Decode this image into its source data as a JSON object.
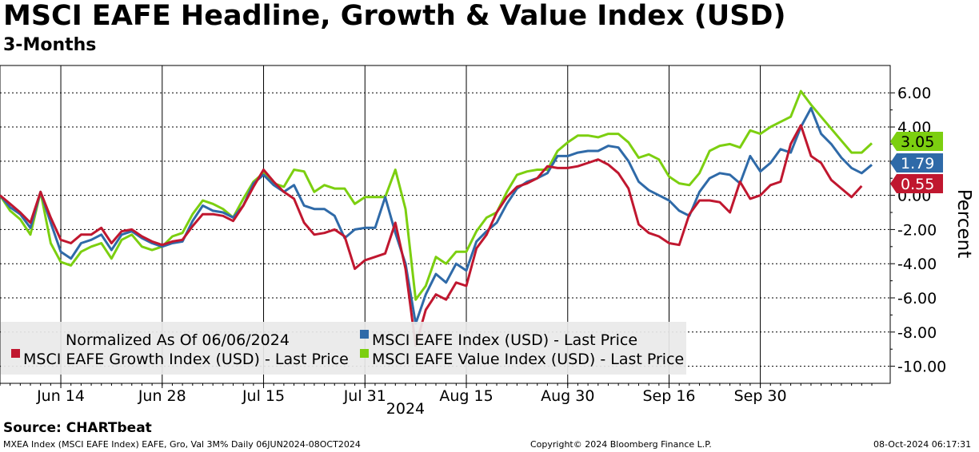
{
  "title": "MSCI EAFE Headline, Growth & Value Index (USD)",
  "subtitle": "3-Months",
  "chart_data": {
    "type": "line",
    "ylabel": "Percent",
    "xlabel": "2024",
    "ylim": [
      -11,
      7.6
    ],
    "yticks": [
      6,
      4,
      2,
      0,
      -2,
      -4,
      -6,
      -8,
      -10
    ],
    "ytick_labels": [
      "6.00",
      "4.00",
      "2.00",
      "0.00",
      "-2.00",
      "-4.00",
      "-6.00",
      "-8.00",
      "-10.00"
    ],
    "xticks": [
      {
        "label": "Jun 14",
        "index": 6
      },
      {
        "label": "Jun 28",
        "index": 16
      },
      {
        "label": "Jul 15",
        "index": 26
      },
      {
        "label": "Jul 31",
        "index": 36
      },
      {
        "label": "Aug 15",
        "index": 46
      },
      {
        "label": "Aug 30",
        "index": 56
      },
      {
        "label": "Sep 16",
        "index": 66
      },
      {
        "label": "Sep 30",
        "index": 75
      }
    ],
    "legend": {
      "note": "Normalized As Of 06/06/2024",
      "placement": "bottom-left"
    },
    "series": [
      {
        "name": "MSCI EAFE Index (USD) - Last Price",
        "color": "#2f6aa8",
        "last_value_label": "1.79",
        "values": [
          0.0,
          -0.7,
          -1.1,
          -1.9,
          0.2,
          -1.6,
          -3.3,
          -3.7,
          -2.8,
          -2.6,
          -2.3,
          -3.2,
          -2.3,
          -2.1,
          -2.5,
          -2.8,
          -3.0,
          -2.8,
          -2.7,
          -1.5,
          -0.6,
          -0.9,
          -1.0,
          -1.3,
          -0.6,
          0.7,
          1.2,
          0.6,
          0.2,
          0.6,
          -0.6,
          -0.8,
          -0.8,
          -1.2,
          -2.5,
          -2.0,
          -1.9,
          -1.9,
          -0.1,
          -2.2,
          -4.0,
          -7.5,
          -5.8,
          -4.6,
          -5.1,
          -4.0,
          -4.4,
          -2.7,
          -2.1,
          -1.6,
          -0.5,
          0.4,
          0.8,
          1.0,
          1.3,
          2.3,
          2.3,
          2.5,
          2.6,
          2.6,
          2.9,
          2.8,
          2.0,
          0.8,
          0.3,
          0.0,
          -0.3,
          -0.9,
          -1.2,
          0.2,
          1.0,
          1.3,
          1.2,
          0.7,
          2.3,
          1.4,
          1.9,
          2.7,
          2.5,
          4.0,
          5.1,
          3.6,
          3.0,
          2.2,
          1.6,
          1.3,
          1.79
        ]
      },
      {
        "name": "MSCI EAFE Growth Index (USD) - Last Price",
        "color": "#c0172f",
        "last_value_label": "0.55",
        "values": [
          0.0,
          -0.5,
          -1.0,
          -1.6,
          0.2,
          -1.3,
          -2.6,
          -2.8,
          -2.3,
          -2.3,
          -1.9,
          -2.8,
          -2.1,
          -2.0,
          -2.4,
          -2.7,
          -2.9,
          -2.7,
          -2.6,
          -1.8,
          -1.1,
          -1.1,
          -1.2,
          -1.5,
          -0.6,
          0.5,
          1.5,
          0.8,
          0.2,
          -0.2,
          -1.6,
          -2.3,
          -2.2,
          -2.0,
          -2.4,
          -4.3,
          -3.8,
          -3.6,
          -3.4,
          -1.6,
          -4.3,
          -8.8,
          -6.7,
          -5.8,
          -6.1,
          -5.1,
          -5.3,
          -3.1,
          -2.3,
          -1.0,
          -0.1,
          0.5,
          0.7,
          1.0,
          1.7,
          1.6,
          1.6,
          1.7,
          1.9,
          2.1,
          1.8,
          1.3,
          0.4,
          -1.7,
          -2.2,
          -2.4,
          -2.8,
          -2.9,
          -1.1,
          -0.3,
          -0.3,
          -0.4,
          -1.0,
          0.8,
          -0.2,
          0.0,
          0.6,
          0.8,
          3.0,
          4.1,
          2.3,
          1.9,
          0.9,
          0.4,
          -0.1,
          0.55
        ]
      },
      {
        "name": "MSCI EAFE Value Index (USD) - Last Price",
        "color": "#7ccf10",
        "last_value_label": "3.05",
        "values": [
          0.0,
          -0.9,
          -1.4,
          -2.3,
          0.2,
          -2.8,
          -3.9,
          -4.1,
          -3.3,
          -3.0,
          -2.8,
          -3.7,
          -2.6,
          -2.3,
          -3.0,
          -3.2,
          -3.0,
          -2.4,
          -2.2,
          -1.1,
          -0.3,
          -0.5,
          -0.8,
          -1.3,
          -0.2,
          0.8,
          1.3,
          0.7,
          0.5,
          1.5,
          1.4,
          0.2,
          0.6,
          0.4,
          0.4,
          -0.5,
          -0.1,
          -0.1,
          -0.1,
          1.5,
          -0.8,
          -6.1,
          -5.3,
          -3.6,
          -4.0,
          -3.3,
          -3.3,
          -2.1,
          -1.3,
          -1.0,
          0.2,
          1.2,
          1.4,
          1.5,
          1.5,
          2.6,
          3.1,
          3.5,
          3.5,
          3.4,
          3.6,
          3.6,
          3.1,
          2.2,
          2.4,
          2.1,
          1.1,
          0.7,
          0.6,
          1.3,
          2.6,
          2.9,
          3.0,
          2.8,
          3.8,
          3.6,
          4.0,
          4.3,
          4.6,
          6.1,
          5.3,
          4.6,
          3.9,
          3.2,
          2.5,
          2.5,
          3.05
        ]
      }
    ]
  },
  "footer": {
    "source": "Source: CHARTbeat",
    "left": "MXEA Index (MSCI EAFE Index) EAFE, Gro, Val 3M%  Daily 06JUN2024-08OCT2024",
    "center": "Copyright© 2024 Bloomberg Finance L.P.",
    "right": "08-Oct-2024 06:17:31"
  }
}
